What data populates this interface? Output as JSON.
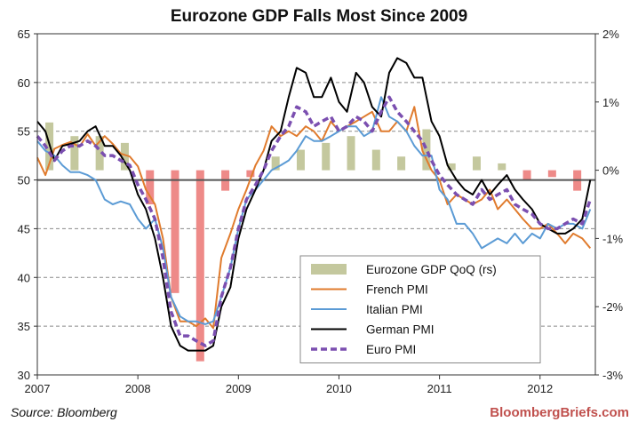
{
  "chart_data": {
    "type": "line",
    "title": "Eurozone GDP Falls Most Since 2009",
    "x_ticks": [
      "2007",
      "2008",
      "2009",
      "2010",
      "2011",
      "2012"
    ],
    "x_range": [
      2007.0,
      2012.55
    ],
    "y_left": {
      "ticks": [
        "30",
        "35",
        "40",
        "45",
        "50",
        "55",
        "60",
        "65"
      ],
      "range": [
        30,
        65
      ]
    },
    "y_right": {
      "ticks": [
        "-3%",
        "-2%",
        "-1%",
        "0%",
        "1%",
        "2%"
      ],
      "range": [
        -3,
        2
      ]
    },
    "grid": true,
    "legend_position": "bottom-center",
    "bars": {
      "name": "Eurozone GDP QoQ (rs)",
      "axis": "right",
      "x": [
        2007.12,
        2007.37,
        2007.62,
        2007.87,
        2008.12,
        2008.37,
        2008.62,
        2008.87,
        2009.12,
        2009.37,
        2009.62,
        2009.87,
        2010.12,
        2010.37,
        2010.62,
        2010.87,
        2011.12,
        2011.37,
        2011.62,
        2011.87,
        2012.12,
        2012.37
      ],
      "values": [
        0.7,
        0.5,
        0.5,
        0.4,
        -0.5,
        -1.8,
        -2.8,
        -0.3,
        -0.1,
        0.2,
        0.3,
        0.4,
        0.5,
        0.3,
        0.2,
        0.6,
        0.1,
        0.2,
        0.1,
        -0.15,
        -0.1,
        -0.3
      ],
      "colors": {
        "positive": "#c4c89e",
        "negative": "#ee8a88"
      }
    },
    "series": [
      {
        "name": "French PMI",
        "color": "#e07b2d",
        "x": [
          2007.0,
          2007.08,
          2007.17,
          2007.25,
          2007.33,
          2007.42,
          2007.5,
          2007.58,
          2007.67,
          2007.75,
          2007.83,
          2007.92,
          2008.0,
          2008.08,
          2008.17,
          2008.25,
          2008.33,
          2008.42,
          2008.5,
          2008.58,
          2008.67,
          2008.75,
          2008.83,
          2008.92,
          2009.0,
          2009.08,
          2009.17,
          2009.25,
          2009.33,
          2009.42,
          2009.5,
          2009.58,
          2009.67,
          2009.75,
          2009.83,
          2009.92,
          2010.0,
          2010.08,
          2010.17,
          2010.25,
          2010.33,
          2010.42,
          2010.5,
          2010.58,
          2010.67,
          2010.75,
          2010.83,
          2010.92,
          2011.0,
          2011.08,
          2011.17,
          2011.25,
          2011.33,
          2011.42,
          2011.5,
          2011.58,
          2011.67,
          2011.75,
          2011.83,
          2011.92,
          2012.0,
          2012.08,
          2012.17,
          2012.25,
          2012.33,
          2012.42,
          2012.5
        ],
        "values": [
          52.3,
          50.5,
          53.2,
          53.6,
          53.9,
          53.4,
          54.7,
          53.5,
          54.5,
          53.7,
          52.7,
          52.4,
          51.4,
          49.0,
          47.5,
          44.0,
          38.0,
          35.5,
          35.5,
          35.0,
          35.8,
          34.8,
          42.0,
          44.5,
          47.0,
          49.0,
          51.5,
          53.0,
          55.5,
          54.5,
          55.0,
          54.5,
          55.5,
          55.0,
          54.0,
          56.0,
          55.0,
          55.5,
          56.0,
          56.5,
          57.0,
          55.0,
          55.0,
          56.0,
          55.0,
          57.5,
          53.0,
          51.0,
          50.0,
          47.5,
          48.5,
          48.0,
          47.5,
          48.0,
          49.0,
          47.0,
          48.0,
          47.0,
          46.0,
          45.0,
          45.0,
          45.5,
          44.5,
          43.5,
          44.5,
          44.0,
          43.0
        ]
      },
      {
        "name": "Italian PMI",
        "color": "#5b9bd5",
        "x": [
          2007.0,
          2007.08,
          2007.17,
          2007.25,
          2007.33,
          2007.42,
          2007.5,
          2007.58,
          2007.67,
          2007.75,
          2007.83,
          2007.92,
          2008.0,
          2008.08,
          2008.17,
          2008.25,
          2008.33,
          2008.42,
          2008.5,
          2008.58,
          2008.67,
          2008.75,
          2008.83,
          2008.92,
          2009.0,
          2009.08,
          2009.17,
          2009.25,
          2009.33,
          2009.42,
          2009.5,
          2009.58,
          2009.67,
          2009.75,
          2009.83,
          2009.92,
          2010.0,
          2010.08,
          2010.17,
          2010.25,
          2010.33,
          2010.42,
          2010.5,
          2010.58,
          2010.67,
          2010.75,
          2010.83,
          2010.92,
          2011.0,
          2011.08,
          2011.17,
          2011.25,
          2011.33,
          2011.42,
          2011.5,
          2011.58,
          2011.67,
          2011.75,
          2011.83,
          2011.92,
          2012.0,
          2012.08,
          2012.17,
          2012.25,
          2012.33,
          2012.42,
          2012.5
        ],
        "values": [
          54.0,
          53.0,
          52.5,
          51.5,
          50.8,
          50.8,
          50.5,
          50.0,
          48.0,
          47.5,
          47.8,
          47.5,
          46.0,
          45.0,
          46.0,
          43.0,
          38.0,
          36.0,
          35.5,
          35.5,
          35.2,
          35.5,
          38.0,
          41.0,
          45.0,
          48.0,
          49.0,
          50.0,
          51.0,
          51.5,
          52.0,
          53.0,
          54.5,
          54.0,
          54.0,
          54.5,
          55.0,
          55.5,
          55.5,
          54.5,
          55.0,
          58.5,
          56.5,
          56.0,
          55.0,
          53.5,
          52.5,
          52.5,
          49.0,
          48.0,
          45.5,
          45.5,
          44.5,
          43.0,
          43.5,
          44.0,
          43.5,
          44.5,
          43.5,
          44.5,
          44.0,
          45.5,
          45.0,
          45.5,
          45.5,
          45.0,
          47.0
        ]
      },
      {
        "name": "German PMI",
        "color": "#000000",
        "x": [
          2007.0,
          2007.08,
          2007.17,
          2007.25,
          2007.33,
          2007.42,
          2007.5,
          2007.58,
          2007.67,
          2007.75,
          2007.83,
          2007.92,
          2008.0,
          2008.08,
          2008.17,
          2008.25,
          2008.33,
          2008.42,
          2008.5,
          2008.58,
          2008.67,
          2008.75,
          2008.83,
          2008.92,
          2009.0,
          2009.08,
          2009.17,
          2009.25,
          2009.33,
          2009.42,
          2009.5,
          2009.58,
          2009.67,
          2009.75,
          2009.83,
          2009.92,
          2010.0,
          2010.08,
          2010.17,
          2010.25,
          2010.33,
          2010.42,
          2010.5,
          2010.58,
          2010.67,
          2010.75,
          2010.83,
          2010.92,
          2011.0,
          2011.08,
          2011.17,
          2011.25,
          2011.33,
          2011.42,
          2011.5,
          2011.58,
          2011.67,
          2011.75,
          2011.83,
          2011.92,
          2012.0,
          2012.08,
          2012.17,
          2012.25,
          2012.33,
          2012.42,
          2012.5
        ],
        "values": [
          56.0,
          55.0,
          52.0,
          53.5,
          53.7,
          54.0,
          55.0,
          55.5,
          53.5,
          53.5,
          52.5,
          51.0,
          48.5,
          47.0,
          44.0,
          40.0,
          35.0,
          33.0,
          32.5,
          32.5,
          32.5,
          33.0,
          37.0,
          39.0,
          44.0,
          47.0,
          49.0,
          51.0,
          54.0,
          55.0,
          58.5,
          61.5,
          61.0,
          58.5,
          58.5,
          60.5,
          58.0,
          57.0,
          61.0,
          60.0,
          57.5,
          56.5,
          61.0,
          62.5,
          62.0,
          60.5,
          60.5,
          56.0,
          54.5,
          51.5,
          50.0,
          49.0,
          48.5,
          50.0,
          48.5,
          49.5,
          50.5,
          49.0,
          48.0,
          47.0,
          45.5,
          45.0,
          44.5,
          44.5,
          45.0,
          46.0,
          50.0
        ]
      },
      {
        "name": "Euro PMI",
        "color": "#7b4fb0",
        "dashed": true,
        "x": [
          2007.0,
          2007.08,
          2007.17,
          2007.25,
          2007.33,
          2007.42,
          2007.5,
          2007.58,
          2007.67,
          2007.75,
          2007.83,
          2007.92,
          2008.0,
          2008.08,
          2008.17,
          2008.25,
          2008.33,
          2008.42,
          2008.5,
          2008.58,
          2008.67,
          2008.75,
          2008.83,
          2008.92,
          2009.0,
          2009.08,
          2009.17,
          2009.25,
          2009.33,
          2009.42,
          2009.5,
          2009.58,
          2009.67,
          2009.75,
          2009.83,
          2009.92,
          2010.0,
          2010.08,
          2010.17,
          2010.25,
          2010.33,
          2010.42,
          2010.5,
          2010.58,
          2010.67,
          2010.75,
          2010.83,
          2010.92,
          2011.0,
          2011.08,
          2011.17,
          2011.25,
          2011.33,
          2011.42,
          2011.5,
          2011.58,
          2011.67,
          2011.75,
          2011.83,
          2011.92,
          2012.0,
          2012.08,
          2012.17,
          2012.25,
          2012.33,
          2012.42,
          2012.5
        ],
        "values": [
          54.5,
          53.5,
          52.0,
          53.0,
          53.5,
          53.5,
          54.0,
          53.5,
          52.5,
          52.5,
          52.0,
          51.5,
          49.5,
          48.0,
          46.0,
          42.0,
          36.5,
          34.0,
          34.0,
          33.5,
          33.0,
          33.5,
          38.0,
          41.0,
          45.0,
          48.0,
          49.5,
          51.0,
          53.0,
          54.5,
          55.5,
          57.5,
          57.0,
          55.5,
          56.0,
          56.5,
          55.0,
          55.5,
          56.5,
          56.0,
          55.0,
          57.0,
          58.5,
          57.0,
          56.0,
          55.0,
          54.0,
          52.0,
          50.5,
          49.5,
          48.5,
          48.0,
          47.5,
          49.0,
          48.0,
          48.5,
          49.0,
          47.5,
          47.0,
          46.5,
          45.5,
          45.0,
          45.0,
          45.5,
          46.0,
          45.5,
          48.0
        ]
      }
    ]
  },
  "source_text": "Source: Bloomberg",
  "brand_text": "BloombergBriefs.com"
}
